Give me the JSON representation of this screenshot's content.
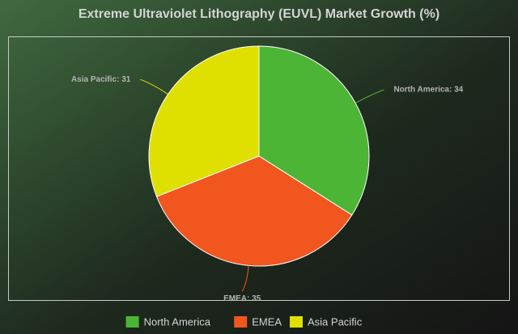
{
  "chart_data": {
    "type": "pie",
    "title": "Extreme Ultraviolet Lithography (EUVL) Market Growth (%)",
    "categories": [
      "North America",
      "EMEA",
      "Asia Pacific"
    ],
    "values": [
      34,
      35,
      31
    ],
    "value_labels": [
      "North America: 34",
      "EMEA: 35",
      "Asia Pacific: 31"
    ],
    "colors": [
      "#4db535",
      "#f0561d",
      "#dfe000"
    ],
    "legend": "bottom"
  }
}
